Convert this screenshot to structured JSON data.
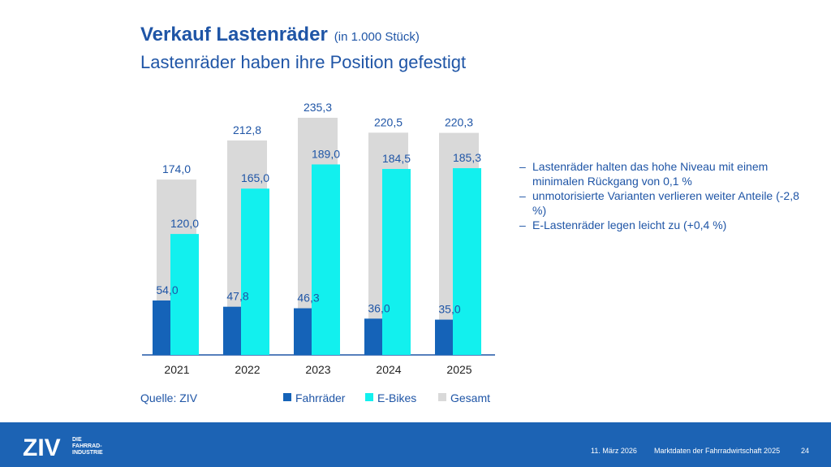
{
  "header": {
    "title": "Verkauf Lastenräder",
    "unit": "(in 1.000 Stück)",
    "subtitle": "Lastenräder haben ihre Position gefestigt"
  },
  "chart_data": {
    "type": "bar",
    "categories": [
      "2021",
      "2022",
      "2023",
      "2024",
      "2025"
    ],
    "series": [
      {
        "name": "Fahrräder",
        "color": "#1563b8",
        "values": [
          54.0,
          47.8,
          46.3,
          36.0,
          35.0
        ],
        "value_labels": [
          "54,0",
          "47,8",
          "46,3",
          "36,0",
          "35,0"
        ]
      },
      {
        "name": "E-Bikes",
        "color": "#12f0ee",
        "values": [
          120.0,
          165.0,
          189.0,
          184.5,
          185.3
        ],
        "value_labels": [
          "120,0",
          "165,0",
          "189,0",
          "184,5",
          "185,3"
        ]
      },
      {
        "name": "Gesamt",
        "color": "#d9d9d9",
        "values": [
          174.0,
          212.8,
          235.3,
          220.5,
          220.3
        ],
        "value_labels": [
          "174,0",
          "212,8",
          "235,3",
          "220,5",
          "220,3"
        ]
      }
    ],
    "source": "Quelle: ZIV"
  },
  "bullets": [
    "Lastenräder halten das hohe Niveau mit einem minimalen Rückgang von 0,1 %",
    "unmotorisierte Varianten verlieren weiter Anteile (-2,8 %)",
    "E-Lastenräder legen leicht zu (+0,4 %)"
  ],
  "footer": {
    "logo": "ZIV",
    "logo_text": [
      "DIE",
      "FAHRRAD-",
      "INDUSTRIE"
    ],
    "date": "11. März 2026",
    "name": "Marktdaten der Fahrradwirtschaft 2025",
    "page": "24"
  }
}
